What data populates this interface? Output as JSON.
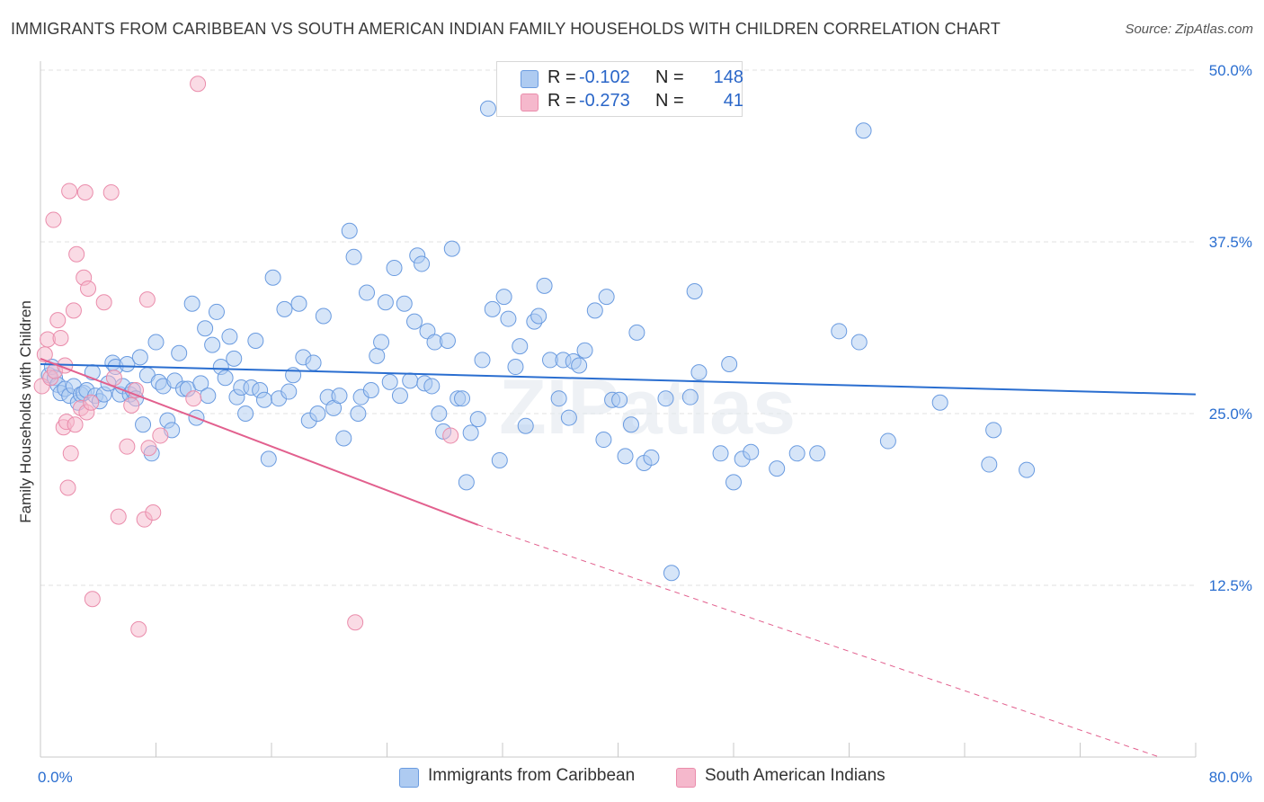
{
  "title": "IMMIGRANTS FROM CARIBBEAN VS SOUTH AMERICAN INDIAN FAMILY HOUSEHOLDS WITH CHILDREN CORRELATION CHART",
  "source": "Source: ZipAtlas.com",
  "watermark": "ZIPatlas",
  "legend": {
    "rows": [
      {
        "r_label": "R =",
        "r_value": "-0.102",
        "n_label": "N =",
        "n_value": "148",
        "color": "#aecbf1"
      },
      {
        "r_label": "R =",
        "r_value": "-0.273",
        "n_label": "N =",
        "n_value": "41",
        "color": "#f5b8cc"
      }
    ]
  },
  "bottom_legend": [
    {
      "label": "Immigrants from Caribbean",
      "color": "#aecbf1"
    },
    {
      "label": "South American Indians",
      "color": "#f5b8cc"
    }
  ],
  "chart_data": {
    "type": "scatter",
    "title": "IMMIGRANTS FROM CARIBBEAN VS SOUTH AMERICAN INDIAN FAMILY HOUSEHOLDS WITH CHILDREN CORRELATION CHART",
    "xlabel": "",
    "ylabel": "Family Households with Children",
    "xlim": [
      0,
      80
    ],
    "ylim": [
      0,
      50
    ],
    "x_tick_labels": [
      "0.0%",
      "80.0%"
    ],
    "y_ticks": [
      12.5,
      25.0,
      37.5,
      50.0
    ],
    "y_tick_labels": [
      "12.5%",
      "25.0%",
      "37.5%",
      "50.0%"
    ],
    "grid": true,
    "series": [
      {
        "name": "Immigrants from Caribbean",
        "color": "#aecbf1",
        "stroke": "#6a9be0",
        "trend": {
          "x": [
            0,
            80
          ],
          "y": [
            28.6,
            26.4
          ],
          "color": "#2a6ed0"
        },
        "points": [
          [
            0.6,
            27.8
          ],
          [
            0.8,
            28.4
          ],
          [
            1.0,
            27.6
          ],
          [
            1.2,
            27.1
          ],
          [
            1.4,
            26.5
          ],
          [
            1.7,
            26.8
          ],
          [
            2.0,
            26.3
          ],
          [
            2.3,
            27.0
          ],
          [
            2.6,
            25.8
          ],
          [
            2.8,
            26.4
          ],
          [
            3.0,
            26.5
          ],
          [
            3.2,
            26.7
          ],
          [
            3.6,
            28.0
          ],
          [
            3.8,
            26.3
          ],
          [
            4.1,
            25.9
          ],
          [
            4.4,
            26.4
          ],
          [
            4.7,
            27.2
          ],
          [
            5.0,
            28.7
          ],
          [
            5.2,
            28.4
          ],
          [
            5.5,
            26.4
          ],
          [
            5.7,
            27.0
          ],
          [
            6.0,
            28.6
          ],
          [
            6.2,
            26.4
          ],
          [
            6.4,
            26.7
          ],
          [
            6.6,
            26.1
          ],
          [
            6.9,
            29.1
          ],
          [
            7.1,
            24.2
          ],
          [
            7.4,
            27.8
          ],
          [
            7.7,
            22.1
          ],
          [
            8.0,
            30.2
          ],
          [
            8.2,
            27.3
          ],
          [
            8.5,
            27.0
          ],
          [
            8.8,
            24.5
          ],
          [
            9.1,
            23.8
          ],
          [
            9.3,
            27.4
          ],
          [
            9.6,
            29.4
          ],
          [
            9.9,
            26.8
          ],
          [
            10.2,
            26.8
          ],
          [
            10.5,
            33.0
          ],
          [
            10.8,
            24.7
          ],
          [
            11.1,
            27.2
          ],
          [
            11.4,
            31.2
          ],
          [
            11.6,
            26.3
          ],
          [
            11.9,
            30.0
          ],
          [
            12.2,
            32.4
          ],
          [
            12.5,
            28.4
          ],
          [
            12.8,
            27.6
          ],
          [
            13.1,
            30.6
          ],
          [
            13.4,
            29.0
          ],
          [
            13.6,
            26.2
          ],
          [
            13.9,
            26.9
          ],
          [
            14.2,
            25.0
          ],
          [
            14.6,
            26.9
          ],
          [
            14.9,
            30.3
          ],
          [
            15.2,
            26.7
          ],
          [
            15.5,
            26.0
          ],
          [
            15.8,
            21.7
          ],
          [
            16.1,
            34.9
          ],
          [
            16.5,
            26.1
          ],
          [
            16.9,
            32.6
          ],
          [
            17.2,
            26.6
          ],
          [
            17.5,
            27.8
          ],
          [
            17.9,
            33.0
          ],
          [
            18.2,
            29.1
          ],
          [
            18.6,
            24.5
          ],
          [
            18.9,
            28.7
          ],
          [
            19.2,
            25.0
          ],
          [
            19.6,
            32.1
          ],
          [
            19.9,
            26.2
          ],
          [
            20.3,
            25.4
          ],
          [
            20.7,
            26.3
          ],
          [
            21.0,
            23.2
          ],
          [
            21.4,
            38.3
          ],
          [
            21.7,
            36.4
          ],
          [
            22.0,
            25.0
          ],
          [
            22.2,
            26.2
          ],
          [
            22.6,
            33.8
          ],
          [
            22.9,
            26.7
          ],
          [
            23.3,
            29.2
          ],
          [
            23.6,
            30.2
          ],
          [
            23.9,
            33.1
          ],
          [
            24.2,
            27.3
          ],
          [
            24.5,
            35.6
          ],
          [
            24.9,
            26.3
          ],
          [
            25.2,
            33.0
          ],
          [
            25.6,
            27.4
          ],
          [
            25.9,
            31.7
          ],
          [
            26.1,
            36.5
          ],
          [
            26.4,
            35.9
          ],
          [
            26.6,
            27.2
          ],
          [
            26.8,
            31.0
          ],
          [
            27.1,
            27.0
          ],
          [
            27.3,
            30.2
          ],
          [
            27.6,
            25.0
          ],
          [
            27.9,
            23.7
          ],
          [
            28.2,
            30.3
          ],
          [
            28.5,
            37.0
          ],
          [
            28.9,
            26.1
          ],
          [
            29.2,
            26.1
          ],
          [
            29.5,
            20.0
          ],
          [
            29.8,
            23.6
          ],
          [
            30.3,
            24.6
          ],
          [
            30.6,
            28.9
          ],
          [
            31.0,
            47.2
          ],
          [
            31.3,
            32.6
          ],
          [
            31.8,
            21.6
          ],
          [
            32.1,
            33.5
          ],
          [
            32.4,
            31.9
          ],
          [
            32.9,
            28.4
          ],
          [
            33.2,
            29.9
          ],
          [
            33.6,
            24.1
          ],
          [
            34.2,
            31.7
          ],
          [
            34.5,
            32.1
          ],
          [
            34.9,
            34.3
          ],
          [
            35.3,
            28.9
          ],
          [
            35.9,
            26.1
          ],
          [
            36.2,
            28.9
          ],
          [
            36.6,
            24.7
          ],
          [
            36.9,
            28.8
          ],
          [
            37.3,
            28.5
          ],
          [
            37.7,
            29.6
          ],
          [
            38.4,
            32.5
          ],
          [
            39.0,
            23.1
          ],
          [
            39.2,
            33.5
          ],
          [
            39.6,
            26.0
          ],
          [
            40.1,
            26.0
          ],
          [
            40.5,
            21.9
          ],
          [
            40.9,
            24.2
          ],
          [
            41.3,
            30.9
          ],
          [
            41.8,
            21.4
          ],
          [
            42.3,
            21.8
          ],
          [
            43.3,
            26.1
          ],
          [
            43.7,
            13.4
          ],
          [
            45.0,
            26.2
          ],
          [
            45.3,
            33.9
          ],
          [
            45.6,
            28.0
          ],
          [
            47.1,
            22.1
          ],
          [
            47.7,
            28.6
          ],
          [
            48.0,
            20.0
          ],
          [
            48.6,
            21.7
          ],
          [
            49.2,
            22.2
          ],
          [
            51.0,
            21.0
          ],
          [
            52.4,
            22.1
          ],
          [
            53.8,
            22.1
          ],
          [
            55.3,
            31.0
          ],
          [
            56.7,
            30.2
          ],
          [
            57.0,
            45.6
          ],
          [
            58.7,
            23.0
          ],
          [
            62.3,
            25.8
          ],
          [
            65.7,
            21.3
          ],
          [
            66.0,
            23.8
          ],
          [
            68.3,
            20.9
          ]
        ]
      },
      {
        "name": "South American Indians",
        "color": "#f5b8cc",
        "stroke": "#ea8cab",
        "trend": {
          "x": [
            0,
            30.3
          ],
          "y": [
            29.0,
            16.9
          ],
          "dash_to": [
            80,
            -0.9
          ],
          "color": "#e2608e"
        },
        "points": [
          [
            0.1,
            27.0
          ],
          [
            0.3,
            29.3
          ],
          [
            0.5,
            30.4
          ],
          [
            0.7,
            27.6
          ],
          [
            0.9,
            39.1
          ],
          [
            1.0,
            28.1
          ],
          [
            1.2,
            31.8
          ],
          [
            1.4,
            30.5
          ],
          [
            1.6,
            24.0
          ],
          [
            1.7,
            28.5
          ],
          [
            1.8,
            24.4
          ],
          [
            1.9,
            19.6
          ],
          [
            2.0,
            41.2
          ],
          [
            2.1,
            22.1
          ],
          [
            2.3,
            32.5
          ],
          [
            2.4,
            24.2
          ],
          [
            2.5,
            36.6
          ],
          [
            2.8,
            25.4
          ],
          [
            3.0,
            34.9
          ],
          [
            3.1,
            41.1
          ],
          [
            3.2,
            25.1
          ],
          [
            3.3,
            34.1
          ],
          [
            3.5,
            25.8
          ],
          [
            3.6,
            11.5
          ],
          [
            4.4,
            33.1
          ],
          [
            4.9,
            41.1
          ],
          [
            5.1,
            27.6
          ],
          [
            5.4,
            17.5
          ],
          [
            6.0,
            22.6
          ],
          [
            6.3,
            25.6
          ],
          [
            6.6,
            26.7
          ],
          [
            6.8,
            9.3
          ],
          [
            7.2,
            17.3
          ],
          [
            7.4,
            33.3
          ],
          [
            7.5,
            22.5
          ],
          [
            7.8,
            17.8
          ],
          [
            8.3,
            23.4
          ],
          [
            10.6,
            26.1
          ],
          [
            10.9,
            49.0
          ],
          [
            21.8,
            9.8
          ],
          [
            28.4,
            23.4
          ]
        ]
      }
    ]
  }
}
